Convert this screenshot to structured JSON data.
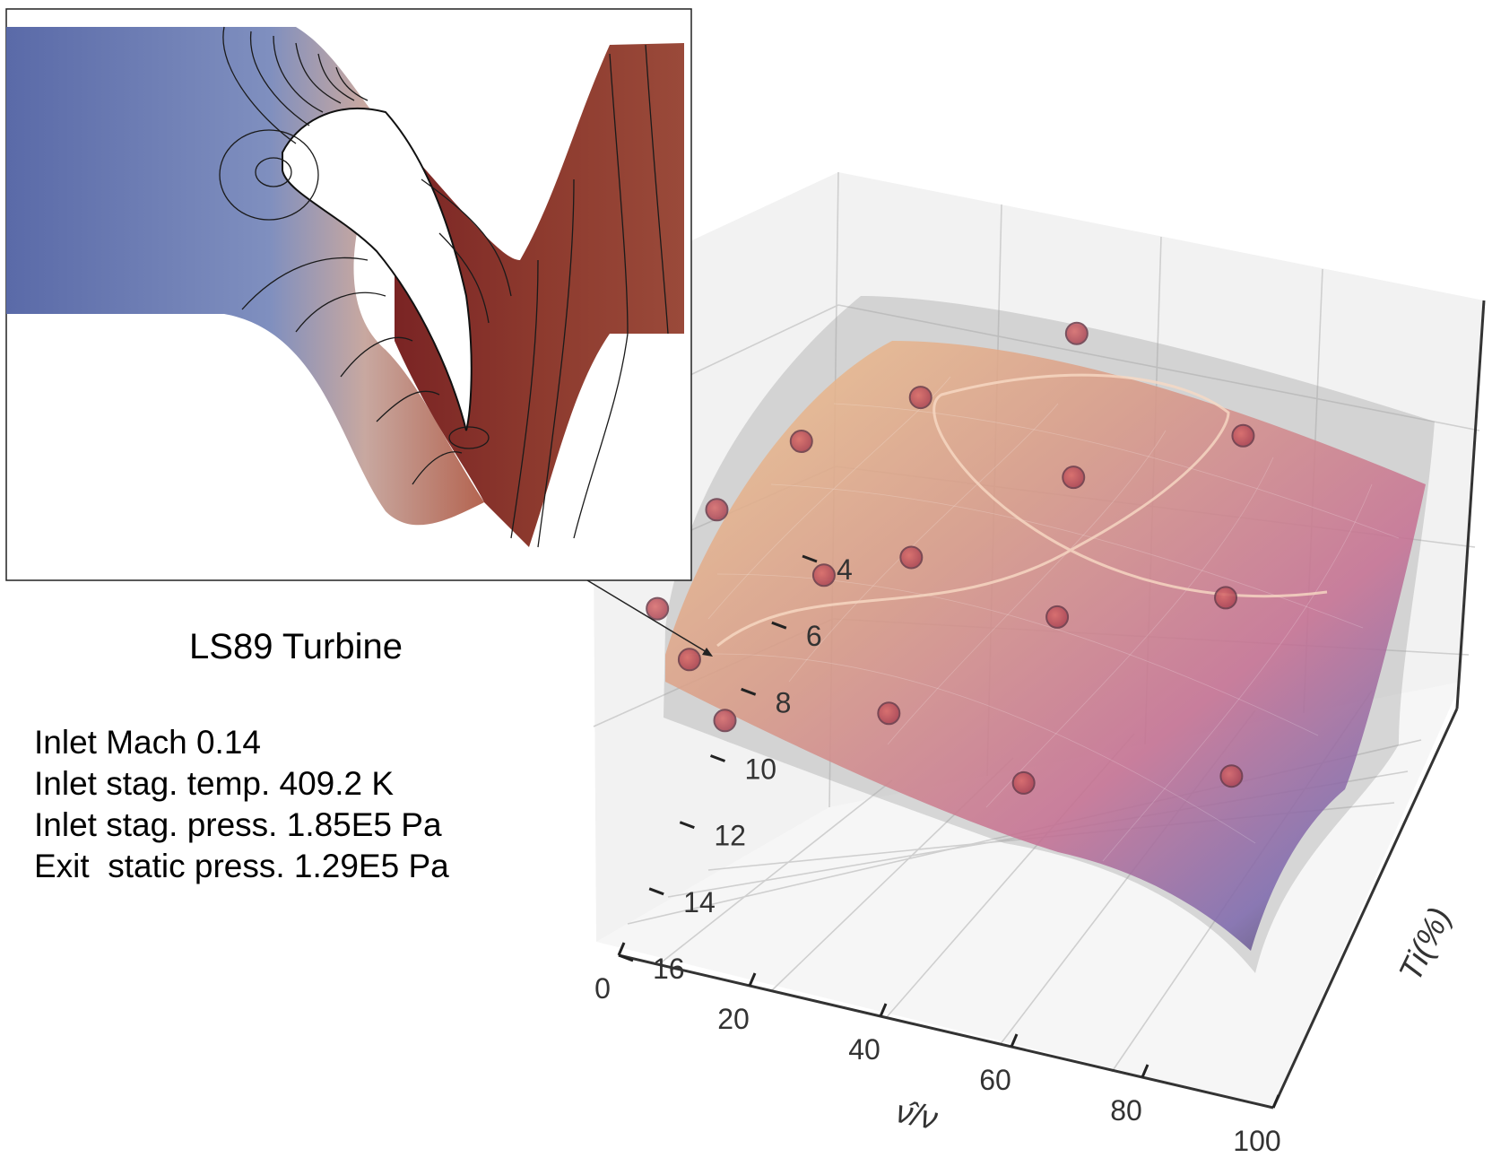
{
  "inset": {
    "title": "LS89 Turbine",
    "conditions": [
      "Inlet Mach 0.14",
      "Inlet stag. temp. 409.2 K",
      "Inlet stag. press. 1.85E5 Pa",
      "Exit  static press. 1.29E5 Pa"
    ]
  },
  "chart_data": {
    "type": "surface3d",
    "title": "",
    "xlabel": "ν̂/ν",
    "ylabel": "Ti(%)",
    "zlabel": "",
    "x_ticks": [
      "100",
      "80",
      "60",
      "40",
      "20",
      "0"
    ],
    "y_ticks": [
      "4",
      "6",
      "8",
      "10",
      "12",
      "14",
      "16"
    ],
    "xlim": [
      0,
      100
    ],
    "ylim": [
      4,
      16
    ],
    "colors": {
      "surface_top": "#f4b98f",
      "surface_mid": "#c97a8c",
      "surface_bottom": "#6b5fa0",
      "surface_dark": "#3a3a3a",
      "points": "#c0505a",
      "envelope": "#9a9a9a",
      "contour_low": "#5565a8",
      "contour_high": "#7a2424"
    },
    "samples": [
      {
        "x": 88,
        "y": 13.6
      },
      {
        "x": 78,
        "y": 9.7
      },
      {
        "x": 72,
        "y": 6.0
      },
      {
        "x": 60,
        "y": 15.2
      },
      {
        "x": 56,
        "y": 11.3
      },
      {
        "x": 51,
        "y": 8.1
      },
      {
        "x": 38,
        "y": 14.6
      },
      {
        "x": 33,
        "y": 11.0
      },
      {
        "x": 26,
        "y": 7.4
      },
      {
        "x": 22,
        "y": 12.0
      },
      {
        "x": 12,
        "y": 9.2
      },
      {
        "x": 8,
        "y": 14.8
      },
      {
        "x": 4,
        "y": 11.3
      },
      {
        "x": 16,
        "y": 15.9
      },
      {
        "x": 1,
        "y": 13.9
      },
      {
        "x": 44,
        "y": 4.9
      }
    ]
  }
}
